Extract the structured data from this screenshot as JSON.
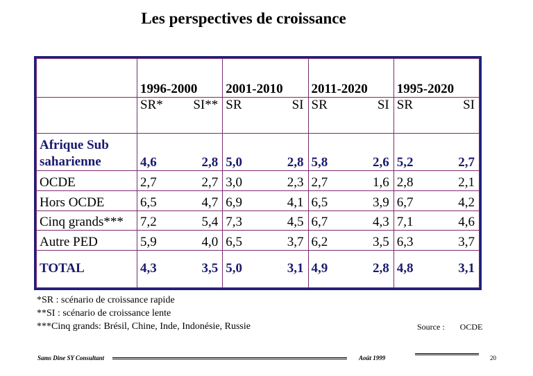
{
  "title": "Les perspectives de croissance",
  "table": {
    "periods": [
      "1996-2000",
      "2001-2010",
      "2011-2020",
      "1995-2020"
    ],
    "sub_headers": [
      [
        "SR*",
        "SI**"
      ],
      [
        "SR",
        "SI"
      ],
      [
        "SR",
        "SI"
      ],
      [
        "SR",
        "SI"
      ]
    ],
    "rows": [
      {
        "label": "Afrique Sub saharienne",
        "values": [
          [
            "4,6",
            "2,8"
          ],
          [
            "5,0",
            "2,8"
          ],
          [
            "5,8",
            "2,6"
          ],
          [
            "5,2",
            "2,7"
          ]
        ]
      },
      {
        "label": "OCDE",
        "values": [
          [
            "2,7",
            "2,7"
          ],
          [
            "3,0",
            "2,3"
          ],
          [
            "2,7",
            "1,6"
          ],
          [
            "2,8",
            "2,1"
          ]
        ]
      },
      {
        "label": "Hors OCDE",
        "values": [
          [
            "6,5",
            "4,7"
          ],
          [
            "6,9",
            "4,1"
          ],
          [
            "6,5",
            "3,9"
          ],
          [
            "6,7",
            "4,2"
          ]
        ]
      },
      {
        "label": "Cinq grands***",
        "values": [
          [
            "7,2",
            "5,4"
          ],
          [
            "7,3",
            "4,5"
          ],
          [
            "6,7",
            "4,3"
          ],
          [
            "7,1",
            "4,6"
          ]
        ]
      },
      {
        "label": "Autre PED",
        "values": [
          [
            "5,9",
            "4,0"
          ],
          [
            "6,5",
            "3,7"
          ],
          [
            "6,2",
            "3,5"
          ],
          [
            "6,3",
            "3,7"
          ]
        ]
      },
      {
        "label": "TOTAL",
        "values": [
          [
            "4,3",
            "3,5"
          ],
          [
            "5,0",
            "3,1"
          ],
          [
            "4,9",
            "2,8"
          ],
          [
            "4,8",
            "3,1"
          ]
        ]
      }
    ]
  },
  "footnotes": [
    "*SR : scénario de croissance rapide",
    "**SI : scénario de croissance lente",
    "***Cinq grands: Brésil, Chine, Inde, Indonésie, Russie"
  ],
  "source": {
    "label": "Source :",
    "value": "OCDE"
  },
  "footer": {
    "author": "Sams Dine SY Consultant",
    "date": "Août 1999",
    "page": "20"
  }
}
